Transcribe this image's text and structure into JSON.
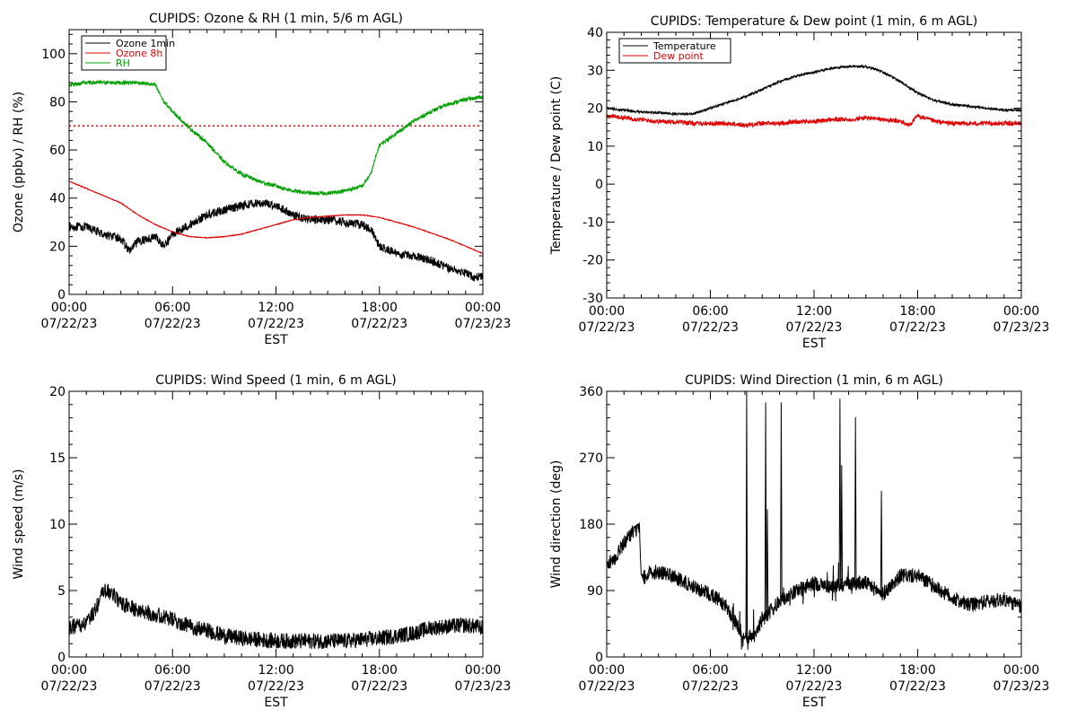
{
  "chart_data": [
    {
      "type": "line",
      "title": "CUPIDS: Ozone & RH (1 min, 5/6 m AGL)",
      "xlabel": "EST",
      "ylabel": "Ozone (ppbv) / RH (%)",
      "x_ticks": [
        {
          "time": "00:00",
          "date": "07/22/23"
        },
        {
          "time": "06:00",
          "date": "07/22/23"
        },
        {
          "time": "12:00",
          "date": "07/22/23"
        },
        {
          "time": "18:00",
          "date": "07/22/23"
        },
        {
          "time": "00:00",
          "date": "07/23/23"
        }
      ],
      "xlim": [
        0,
        24
      ],
      "ylim": [
        0,
        110
      ],
      "y_ticks": [
        0,
        20,
        40,
        60,
        80,
        100
      ],
      "legend_position": "top-left",
      "reference_lines": [
        {
          "y": 70,
          "color": "#e00000",
          "style": "dotted"
        }
      ],
      "series": [
        {
          "name": "Ozone 1min",
          "color": "#000000",
          "noise": 1.8,
          "spikes": 0,
          "x": [
            0,
            1,
            2,
            3,
            3.5,
            4,
            5,
            5.5,
            6,
            7,
            8,
            9,
            10,
            11,
            12,
            13,
            14,
            15,
            16,
            17,
            17.5,
            18,
            19,
            20,
            21,
            22,
            23,
            23.5,
            24
          ],
          "y": [
            28,
            28,
            25,
            23,
            18,
            22,
            24,
            20,
            25,
            29,
            33,
            35,
            37,
            38,
            37,
            33,
            31,
            31,
            30,
            29,
            27,
            20,
            17,
            16,
            14,
            11,
            9,
            7,
            8
          ]
        },
        {
          "name": "Ozone 8h",
          "color": "#e00000",
          "noise": 0.15,
          "spikes": 0,
          "x": [
            0,
            1,
            2,
            3,
            4,
            5,
            6,
            7,
            8,
            9,
            10,
            11,
            12,
            13,
            14,
            15,
            16,
            17,
            18,
            19,
            20,
            21,
            22,
            23,
            24
          ],
          "y": [
            47,
            44,
            41,
            38,
            33,
            29,
            26,
            24,
            23.5,
            24,
            25,
            27,
            29,
            31,
            32,
            32.5,
            33,
            33,
            32,
            30,
            28,
            25.5,
            23,
            20,
            17
          ]
        },
        {
          "name": "RH",
          "color": "#00a000",
          "noise": 0.8,
          "spikes": 0,
          "x": [
            0,
            1,
            2,
            3,
            4,
            5,
            5.5,
            6,
            7,
            8,
            9,
            10,
            11,
            12,
            13,
            14,
            15,
            16,
            17,
            17.5,
            18,
            19,
            20,
            21,
            22,
            23,
            24
          ],
          "y": [
            87,
            88,
            88,
            88,
            88,
            87,
            80,
            76,
            69,
            63,
            55,
            50,
            47,
            45,
            43,
            42,
            42,
            43,
            45,
            50,
            62,
            67,
            72,
            76,
            79,
            81,
            82
          ]
        }
      ]
    },
    {
      "type": "line",
      "title": "CUPIDS: Temperature & Dew point (1 min, 6 m AGL)",
      "xlabel": "EST",
      "ylabel": "Temperature / Dew point (C)",
      "x_ticks": [
        {
          "time": "00:00",
          "date": "07/22/23"
        },
        {
          "time": "06:00",
          "date": "07/22/23"
        },
        {
          "time": "12:00",
          "date": "07/22/23"
        },
        {
          "time": "18:00",
          "date": "07/22/23"
        },
        {
          "time": "00:00",
          "date": "07/23/23"
        }
      ],
      "xlim": [
        0,
        24
      ],
      "ylim": [
        -30,
        40
      ],
      "y_ticks": [
        -30,
        -20,
        -10,
        0,
        10,
        20,
        30,
        40
      ],
      "legend_position": "top-left",
      "reference_lines": [],
      "series": [
        {
          "name": "Temperature",
          "color": "#000000",
          "noise": 0.3,
          "spikes": 0,
          "x": [
            0,
            1,
            2,
            3,
            4,
            5,
            6,
            7,
            8,
            9,
            10,
            11,
            12,
            13,
            14,
            15,
            16,
            17,
            18,
            19,
            20,
            21,
            22,
            23,
            24
          ],
          "y": [
            20,
            19.5,
            19,
            18.8,
            18.5,
            18.5,
            20,
            21.5,
            23,
            25,
            27,
            28.5,
            29.5,
            30.5,
            31,
            31,
            29.5,
            27,
            24,
            22,
            21,
            20.5,
            20,
            19.5,
            19.5
          ]
        },
        {
          "name": "Dew point",
          "color": "#e00000",
          "noise": 0.6,
          "spikes": 0,
          "x": [
            0,
            1,
            2,
            3,
            4,
            5,
            6,
            7,
            8,
            9,
            10,
            11,
            12,
            13,
            14,
            15,
            16,
            17,
            17.5,
            18,
            19,
            20,
            21,
            22,
            23,
            24
          ],
          "y": [
            18,
            17.5,
            17,
            16.5,
            16.5,
            16,
            16,
            16,
            15.5,
            16,
            16,
            16.5,
            16.5,
            17,
            17,
            17.5,
            17,
            16.5,
            15.5,
            18,
            16.5,
            16,
            16,
            16,
            16,
            16
          ]
        }
      ]
    },
    {
      "type": "line",
      "title": "CUPIDS: Wind Speed (1 min, 6 m AGL)",
      "xlabel": "EST",
      "ylabel": "Wind speed (m/s)",
      "x_ticks": [
        {
          "time": "00:00",
          "date": "07/22/23"
        },
        {
          "time": "06:00",
          "date": "07/22/23"
        },
        {
          "time": "12:00",
          "date": "07/22/23"
        },
        {
          "time": "18:00",
          "date": "07/22/23"
        },
        {
          "time": "00:00",
          "date": "07/23/23"
        }
      ],
      "xlim": [
        0,
        24
      ],
      "ylim": [
        0,
        20
      ],
      "y_ticks": [
        0,
        5,
        10,
        15,
        20
      ],
      "legend_position": "",
      "reference_lines": [],
      "series": [
        {
          "name": "",
          "color": "#000000",
          "noise": 0.6,
          "spikes": 0,
          "x": [
            0,
            1,
            1.5,
            2,
            2.5,
            3,
            4,
            5,
            6,
            7,
            8,
            9,
            10,
            11,
            12,
            13,
            14,
            15,
            16,
            17,
            18,
            19,
            20,
            21,
            22,
            23,
            24
          ],
          "y": [
            2.2,
            2.5,
            3.5,
            5,
            4.8,
            4,
            3.5,
            3.2,
            2.8,
            2.3,
            2,
            1.6,
            1.4,
            1.3,
            1.2,
            1.2,
            1.2,
            1.2,
            1.2,
            1.3,
            1.4,
            1.6,
            1.8,
            2.2,
            2.3,
            2.4,
            2.2
          ]
        }
      ]
    },
    {
      "type": "line",
      "title": "CUPIDS: Wind Direction (1 min, 6 m AGL)",
      "xlabel": "EST",
      "ylabel": "Wind direction (deg)",
      "x_ticks": [
        {
          "time": "00:00",
          "date": "07/22/23"
        },
        {
          "time": "06:00",
          "date": "07/22/23"
        },
        {
          "time": "12:00",
          "date": "07/22/23"
        },
        {
          "time": "18:00",
          "date": "07/22/23"
        },
        {
          "time": "00:00",
          "date": "07/23/23"
        }
      ],
      "xlim": [
        0,
        24
      ],
      "ylim": [
        0,
        360
      ],
      "y_ticks": [
        0,
        90,
        180,
        270,
        360
      ],
      "legend_position": "",
      "reference_lines": [],
      "series": [
        {
          "name": "",
          "color": "#000000",
          "noise": 10,
          "spikes": 5,
          "x": [
            0,
            0.5,
            1,
            1.5,
            1.9,
            2,
            2.5,
            3,
            4,
            5,
            6,
            6.5,
            7,
            7.5,
            8,
            8.5,
            9,
            10,
            11,
            12,
            13,
            14,
            15,
            16,
            17,
            18,
            19,
            20,
            21,
            22,
            23,
            24
          ],
          "y": [
            125,
            135,
            155,
            170,
            175,
            105,
            115,
            115,
            108,
            95,
            85,
            78,
            65,
            45,
            25,
            30,
            50,
            75,
            90,
            100,
            95,
            100,
            100,
            85,
            110,
            110,
            95,
            80,
            70,
            75,
            78,
            68
          ]
        }
      ],
      "peaks": [
        {
          "x": 8.1,
          "y": 360
        },
        {
          "x": 8.1,
          "y": 190
        },
        {
          "x": 9.2,
          "y": 345
        },
        {
          "x": 9.3,
          "y": 200
        },
        {
          "x": 10.1,
          "y": 345
        },
        {
          "x": 13.5,
          "y": 350
        },
        {
          "x": 13.6,
          "y": 260
        },
        {
          "x": 14.4,
          "y": 325
        },
        {
          "x": 15.9,
          "y": 225
        }
      ]
    }
  ]
}
